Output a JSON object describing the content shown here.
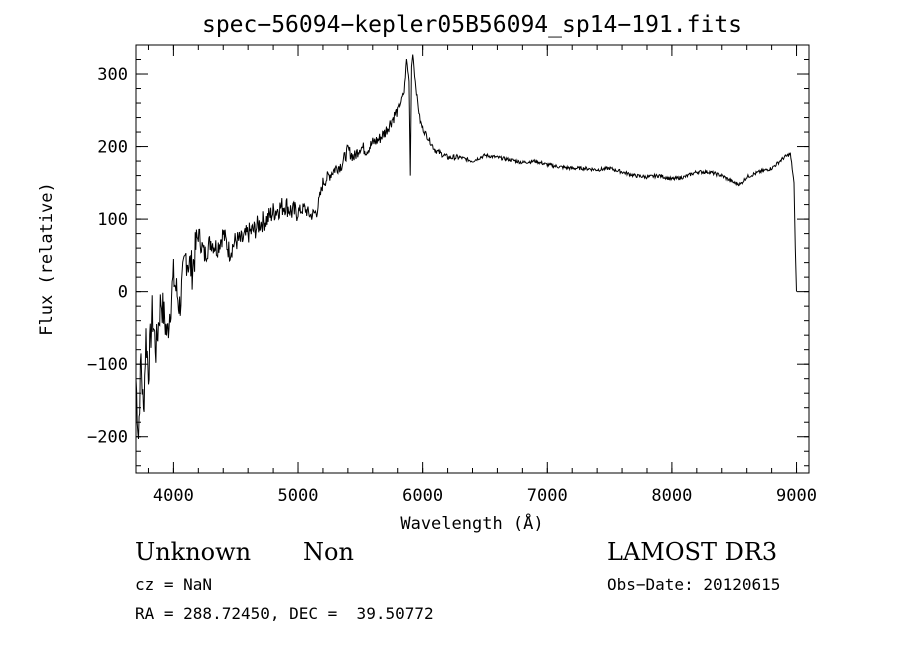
{
  "chart_data": {
    "type": "line",
    "title": "spec−56094−kepler05B56094_sp14−191.fits",
    "xlabel": "Wavelength (Å)",
    "ylabel": "Flux (relative)",
    "xlim": [
      3700,
      9100
    ],
    "ylim": [
      -250,
      340
    ],
    "xticks": [
      4000,
      5000,
      6000,
      7000,
      8000,
      9000
    ],
    "xtick_labels": [
      "4000",
      "5000",
      "6000",
      "7000",
      "8000",
      "9000"
    ],
    "yticks": [
      -200,
      -100,
      0,
      100,
      200,
      300
    ],
    "ytick_labels": [
      "−200",
      "−100",
      "0",
      "100",
      "200",
      "300"
    ],
    "x_minor_step": 200,
    "y_minor_step": 20,
    "grid": false,
    "series": [
      {
        "x": [
          3700,
          3720,
          3740,
          3760,
          3780,
          3800,
          3830,
          3860,
          3900,
          3950,
          4000,
          4050,
          4100,
          4150,
          4200,
          4250,
          4300,
          4350,
          4400,
          4450,
          4500,
          4550,
          4600,
          4650,
          4700,
          4750,
          4800,
          4850,
          4900,
          4950,
          5000,
          5050,
          5100,
          5150,
          5200,
          5250,
          5300,
          5350,
          5400,
          5450,
          5500,
          5550,
          5600,
          5650,
          5700,
          5750,
          5800,
          5850,
          5870,
          5890,
          5900,
          5910,
          5920,
          5940,
          5960,
          5980,
          6000,
          6050,
          6100,
          6150,
          6200,
          6300,
          6400,
          6500,
          6600,
          6700,
          6800,
          6900,
          7000,
          7100,
          7200,
          7300,
          7400,
          7500,
          7600,
          7700,
          7800,
          7900,
          8000,
          8100,
          8200,
          8300,
          8400,
          8500,
          8550,
          8600,
          8700,
          8800,
          8900,
          8950,
          8980,
          8990,
          9000
        ],
        "y": [
          -120,
          -200,
          -90,
          -170,
          -60,
          -110,
          -30,
          -80,
          -10,
          -60,
          20,
          -20,
          50,
          30,
          80,
          50,
          70,
          60,
          80,
          55,
          70,
          70,
          80,
          85,
          95,
          100,
          110,
          115,
          120,
          110,
          110,
          115,
          105,
          110,
          150,
          160,
          170,
          175,
          195,
          185,
          200,
          195,
          205,
          210,
          220,
          235,
          250,
          275,
          320,
          290,
          160,
          310,
          330,
          290,
          260,
          235,
          225,
          210,
          195,
          190,
          185,
          185,
          180,
          188,
          185,
          182,
          178,
          180,
          175,
          172,
          170,
          170,
          168,
          170,
          165,
          160,
          158,
          160,
          155,
          158,
          165,
          165,
          160,
          150,
          148,
          158,
          165,
          170,
          185,
          190,
          150,
          60,
          0
        ]
      }
    ]
  },
  "info": {
    "object_class": "Unknown",
    "subclass": "Non",
    "survey": "LAMOST DR3",
    "cz": "cz = NaN",
    "obs_date": "Obs−Date: 20120615",
    "coords": "RA = 288.72450, DEC =  39.50772"
  }
}
